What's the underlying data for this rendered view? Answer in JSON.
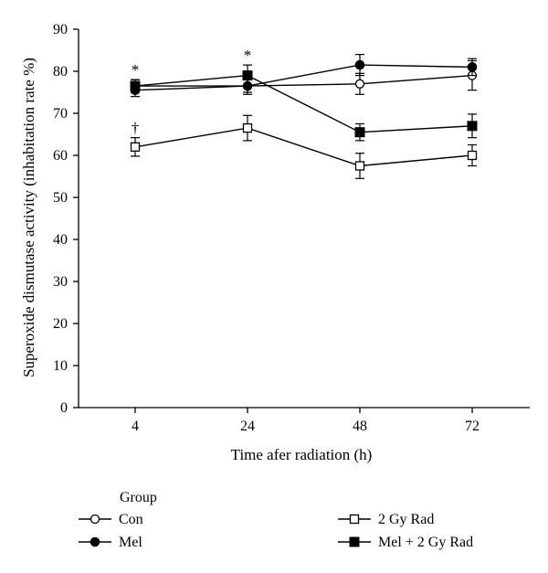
{
  "chart_data": {
    "type": "line",
    "title": "",
    "xlabel": "Time afer radiation (h)",
    "ylabel": "Superoxide dismutase activity (inhabitation rate %)",
    "categories": [
      "4",
      "24",
      "48",
      "72"
    ],
    "ylim": [
      0,
      90
    ],
    "yticks": [
      0,
      10,
      20,
      30,
      40,
      50,
      60,
      70,
      80,
      90
    ],
    "grid": false,
    "legend": {
      "title": "Group",
      "placement": "bottom"
    },
    "series": [
      {
        "name": "Con",
        "marker": "open-circle",
        "values": [
          76.5,
          76.5,
          77,
          79
        ],
        "errors": [
          1.5,
          1.5,
          2.5,
          3.5
        ]
      },
      {
        "name": "Mel",
        "marker": "filled-circle",
        "values": [
          75.5,
          76.5,
          81.5,
          81
        ],
        "errors": [
          1.5,
          2,
          2.5,
          2
        ]
      },
      {
        "name": "2 Gy Rad",
        "marker": "open-square",
        "values": [
          62,
          66.5,
          57.5,
          60
        ],
        "errors": [
          2.2,
          3,
          3,
          2.5
        ]
      },
      {
        "name": "Mel + 2 Gy Rad",
        "marker": "filled-square",
        "values": [
          76.5,
          79,
          65.5,
          67
        ],
        "errors": [
          1.5,
          2.5,
          2,
          2.8
        ]
      }
    ],
    "annotations": [
      {
        "text": "*",
        "category": "4",
        "series": "Mel + 2 Gy Rad"
      },
      {
        "text": "*",
        "category": "24",
        "series": "Mel + 2 Gy Rad"
      },
      {
        "text": "†",
        "category": "4",
        "series": "2 Gy Rad"
      }
    ]
  }
}
